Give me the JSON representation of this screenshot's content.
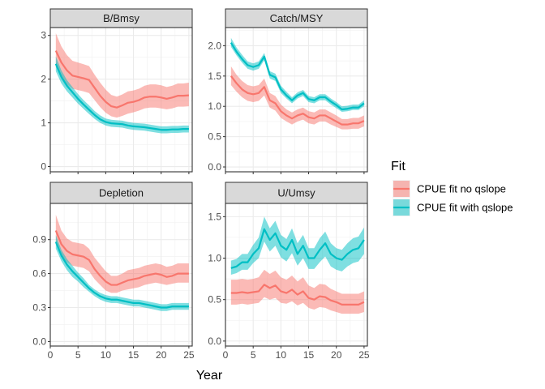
{
  "chart_data": {
    "type": "line",
    "xlabel": "Year",
    "legend": {
      "title": "Fit",
      "placement": "right",
      "entries": [
        "CPUE fit no qslope",
        "CPUE fit with qslope"
      ]
    },
    "colors": {
      "no_qslope": "#F8766D",
      "with_qslope": "#00BFC4"
    },
    "grid": true,
    "x": [
      1,
      2,
      3,
      4,
      5,
      6,
      7,
      8,
      9,
      10,
      11,
      12,
      13,
      14,
      15,
      16,
      17,
      18,
      19,
      20,
      21,
      22,
      23,
      24,
      25
    ],
    "x_ticks": [
      0,
      5,
      10,
      15,
      20,
      25
    ],
    "xlim": [
      0,
      25.6
    ],
    "panels": [
      {
        "title": "B/Bmsy",
        "ylim": [
          -0.12,
          3.18
        ],
        "y_ticks": [
          0,
          1,
          2,
          3
        ],
        "series": [
          {
            "name": "CPUE fit no qslope",
            "y": [
              2.65,
              2.38,
              2.2,
              2.08,
              2.05,
              2.02,
              1.98,
              1.8,
              1.62,
              1.48,
              1.38,
              1.35,
              1.4,
              1.46,
              1.48,
              1.52,
              1.58,
              1.6,
              1.6,
              1.58,
              1.55,
              1.58,
              1.62,
              1.62,
              1.63
            ],
            "lower": [
              2.28,
              2.05,
              1.88,
              1.78,
              1.75,
              1.72,
              1.68,
              1.52,
              1.36,
              1.23,
              1.15,
              1.12,
              1.16,
              1.21,
              1.24,
              1.28,
              1.33,
              1.35,
              1.35,
              1.33,
              1.31,
              1.33,
              1.37,
              1.37,
              1.38
            ],
            "upper": [
              3.05,
              2.75,
              2.55,
              2.42,
              2.38,
              2.34,
              2.3,
              2.1,
              1.92,
              1.76,
              1.64,
              1.6,
              1.65,
              1.72,
              1.74,
              1.78,
              1.85,
              1.88,
              1.88,
              1.86,
              1.82,
              1.85,
              1.9,
              1.9,
              1.92
            ]
          },
          {
            "name": "CPUE fit with qslope",
            "y": [
              2.35,
              2.05,
              1.85,
              1.7,
              1.55,
              1.42,
              1.3,
              1.18,
              1.08,
              1.02,
              0.99,
              0.98,
              0.97,
              0.94,
              0.92,
              0.91,
              0.9,
              0.88,
              0.86,
              0.84,
              0.84,
              0.85,
              0.85,
              0.86,
              0.86
            ],
            "lower": [
              2.18,
              1.9,
              1.72,
              1.58,
              1.44,
              1.32,
              1.2,
              1.09,
              1.0,
              0.94,
              0.91,
              0.9,
              0.89,
              0.86,
              0.84,
              0.83,
              0.82,
              0.8,
              0.78,
              0.76,
              0.76,
              0.77,
              0.77,
              0.78,
              0.78
            ],
            "upper": [
              2.52,
              2.2,
              1.98,
              1.82,
              1.66,
              1.52,
              1.4,
              1.27,
              1.17,
              1.1,
              1.07,
              1.06,
              1.05,
              1.02,
              1.0,
              0.99,
              0.98,
              0.96,
              0.94,
              0.92,
              0.92,
              0.93,
              0.93,
              0.94,
              0.94
            ]
          }
        ]
      },
      {
        "title": "Catch/MSY",
        "ylim": [
          -0.08,
          2.3
        ],
        "y_ticks": [
          0.0,
          0.5,
          1.0,
          1.5,
          2.0
        ],
        "y_tick_labels": [
          "0.0",
          "0.5",
          "1.0",
          "1.5",
          "2.0"
        ],
        "series": [
          {
            "name": "CPUE fit no qslope",
            "y": [
              1.5,
              1.38,
              1.28,
              1.22,
              1.2,
              1.22,
              1.32,
              1.1,
              1.05,
              0.92,
              0.85,
              0.8,
              0.85,
              0.88,
              0.82,
              0.8,
              0.85,
              0.85,
              0.8,
              0.75,
              0.7,
              0.7,
              0.72,
              0.72,
              0.76
            ],
            "lower": [
              1.35,
              1.24,
              1.15,
              1.09,
              1.07,
              1.09,
              1.18,
              0.98,
              0.93,
              0.81,
              0.75,
              0.7,
              0.75,
              0.78,
              0.72,
              0.7,
              0.75,
              0.75,
              0.7,
              0.66,
              0.62,
              0.62,
              0.63,
              0.63,
              0.67
            ],
            "upper": [
              1.66,
              1.52,
              1.42,
              1.35,
              1.33,
              1.35,
              1.46,
              1.22,
              1.17,
              1.03,
              0.95,
              0.9,
              0.95,
              0.98,
              0.92,
              0.9,
              0.95,
              0.95,
              0.9,
              0.85,
              0.79,
              0.79,
              0.81,
              0.81,
              0.85
            ]
          },
          {
            "name": "CPUE fit with qslope",
            "y": [
              2.05,
              1.9,
              1.78,
              1.68,
              1.65,
              1.68,
              1.82,
              1.52,
              1.48,
              1.28,
              1.18,
              1.1,
              1.18,
              1.22,
              1.12,
              1.1,
              1.15,
              1.15,
              1.08,
              1.02,
              0.95,
              0.96,
              0.98,
              0.98,
              1.05
            ],
            "lower": [
              1.98,
              1.84,
              1.72,
              1.62,
              1.59,
              1.62,
              1.76,
              1.46,
              1.42,
              1.22,
              1.13,
              1.05,
              1.13,
              1.17,
              1.07,
              1.05,
              1.1,
              1.1,
              1.03,
              0.97,
              0.91,
              0.92,
              0.94,
              0.94,
              1.0
            ],
            "upper": [
              2.13,
              1.97,
              1.85,
              1.74,
              1.71,
              1.74,
              1.88,
              1.58,
              1.54,
              1.34,
              1.24,
              1.15,
              1.23,
              1.27,
              1.17,
              1.15,
              1.2,
              1.2,
              1.13,
              1.07,
              1.0,
              1.01,
              1.03,
              1.03,
              1.1
            ]
          }
        ]
      },
      {
        "title": "Depletion",
        "ylim": [
          -0.04,
          1.22
        ],
        "y_ticks": [
          0.0,
          0.3,
          0.6,
          0.9
        ],
        "y_tick_labels": [
          "0.0",
          "0.3",
          "0.6",
          "0.9"
        ],
        "series": [
          {
            "name": "CPUE fit no qslope",
            "y": [
              0.98,
              0.86,
              0.8,
              0.77,
              0.76,
              0.75,
              0.72,
              0.64,
              0.58,
              0.53,
              0.5,
              0.5,
              0.52,
              0.54,
              0.55,
              0.56,
              0.58,
              0.59,
              0.6,
              0.59,
              0.57,
              0.58,
              0.6,
              0.6,
              0.6
            ],
            "lower": [
              0.86,
              0.76,
              0.7,
              0.67,
              0.66,
              0.65,
              0.62,
              0.55,
              0.5,
              0.45,
              0.43,
              0.43,
              0.45,
              0.46,
              0.47,
              0.48,
              0.5,
              0.51,
              0.52,
              0.51,
              0.5,
              0.51,
              0.52,
              0.52,
              0.52
            ],
            "upper": [
              1.12,
              0.98,
              0.91,
              0.88,
              0.87,
              0.86,
              0.82,
              0.74,
              0.68,
              0.62,
              0.58,
              0.58,
              0.6,
              0.63,
              0.64,
              0.65,
              0.67,
              0.68,
              0.69,
              0.68,
              0.66,
              0.67,
              0.69,
              0.69,
              0.69
            ]
          },
          {
            "name": "CPUE fit with qslope",
            "y": [
              0.88,
              0.76,
              0.68,
              0.62,
              0.57,
              0.52,
              0.47,
              0.43,
              0.4,
              0.38,
              0.37,
              0.37,
              0.36,
              0.35,
              0.34,
              0.34,
              0.33,
              0.32,
              0.31,
              0.3,
              0.3,
              0.31,
              0.31,
              0.31,
              0.31
            ],
            "lower": [
              0.82,
              0.71,
              0.63,
              0.57,
              0.53,
              0.48,
              0.44,
              0.4,
              0.37,
              0.35,
              0.34,
              0.34,
              0.33,
              0.32,
              0.31,
              0.31,
              0.3,
              0.29,
              0.28,
              0.27,
              0.27,
              0.28,
              0.28,
              0.28,
              0.28
            ],
            "upper": [
              0.94,
              0.81,
              0.73,
              0.67,
              0.61,
              0.56,
              0.5,
              0.46,
              0.43,
              0.41,
              0.4,
              0.4,
              0.39,
              0.38,
              0.37,
              0.37,
              0.36,
              0.35,
              0.34,
              0.33,
              0.33,
              0.34,
              0.34,
              0.34,
              0.34
            ]
          }
        ]
      },
      {
        "title": "U/Umsy",
        "ylim": [
          -0.06,
          1.66
        ],
        "y_ticks": [
          0.0,
          0.5,
          1.0,
          1.5
        ],
        "y_tick_labels": [
          "0.0",
          "0.5",
          "1.0",
          "1.5"
        ],
        "series": [
          {
            "name": "CPUE fit no qslope",
            "y": [
              0.58,
              0.58,
              0.59,
              0.58,
              0.59,
              0.6,
              0.68,
              0.64,
              0.67,
              0.6,
              0.58,
              0.62,
              0.56,
              0.6,
              0.52,
              0.5,
              0.54,
              0.53,
              0.49,
              0.47,
              0.44,
              0.44,
              0.44,
              0.44,
              0.47
            ],
            "lower": [
              0.44,
              0.44,
              0.45,
              0.44,
              0.45,
              0.46,
              0.53,
              0.5,
              0.52,
              0.46,
              0.45,
              0.48,
              0.43,
              0.46,
              0.4,
              0.38,
              0.41,
              0.4,
              0.37,
              0.35,
              0.33,
              0.33,
              0.33,
              0.33,
              0.35
            ],
            "upper": [
              0.74,
              0.74,
              0.75,
              0.74,
              0.75,
              0.77,
              0.86,
              0.81,
              0.85,
              0.77,
              0.74,
              0.79,
              0.72,
              0.77,
              0.67,
              0.64,
              0.69,
              0.68,
              0.63,
              0.6,
              0.57,
              0.57,
              0.57,
              0.57,
              0.6
            ]
          },
          {
            "name": "CPUE fit with qslope",
            "y": [
              0.88,
              0.9,
              0.95,
              0.95,
              1.05,
              1.12,
              1.35,
              1.22,
              1.3,
              1.15,
              1.1,
              1.22,
              1.05,
              1.15,
              1.0,
              1.0,
              1.1,
              1.18,
              1.05,
              1.0,
              0.98,
              1.05,
              1.1,
              1.12,
              1.22
            ],
            "lower": [
              0.8,
              0.82,
              0.86,
              0.86,
              0.94,
              1.0,
              1.2,
              1.08,
              1.15,
              1.01,
              0.96,
              1.06,
              0.91,
              1.0,
              0.87,
              0.87,
              0.95,
              1.02,
              0.9,
              0.86,
              0.84,
              0.9,
              0.94,
              0.96,
              1.05
            ],
            "upper": [
              0.97,
              0.99,
              1.05,
              1.05,
              1.16,
              1.25,
              1.5,
              1.36,
              1.45,
              1.28,
              1.23,
              1.36,
              1.18,
              1.28,
              1.12,
              1.12,
              1.24,
              1.32,
              1.18,
              1.12,
              1.1,
              1.18,
              1.24,
              1.26,
              1.37
            ]
          }
        ]
      }
    ]
  }
}
